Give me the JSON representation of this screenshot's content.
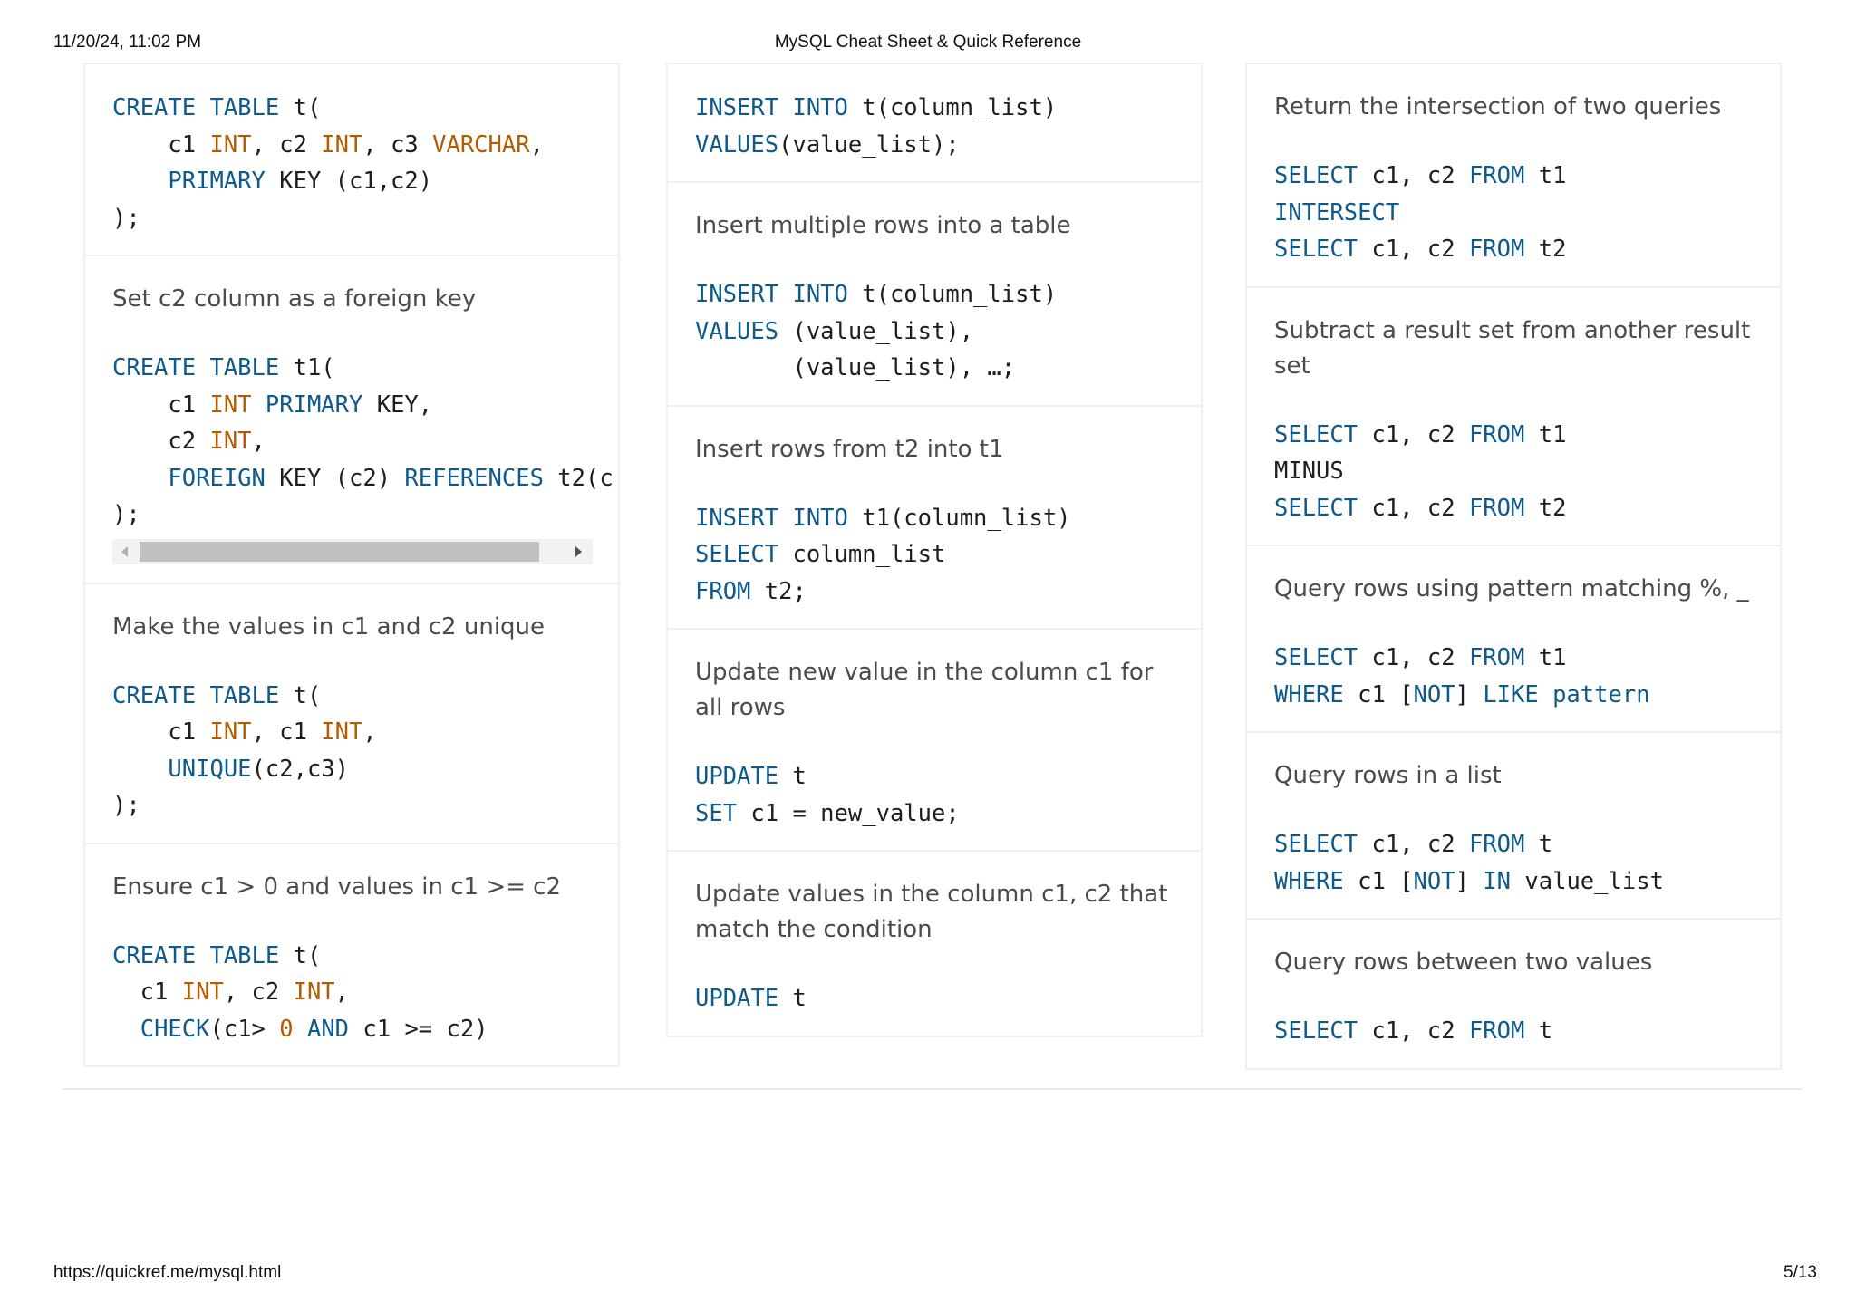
{
  "print_header": {
    "date": "11/20/24, 11:02 PM",
    "title": "MySQL Cheat Sheet & Quick Reference"
  },
  "print_footer": {
    "url": "https://quickref.me/mysql.html",
    "page": "5/13"
  },
  "cards": {
    "c0_1": {
      "code": [
        [
          [
            "kw",
            "CREATE TABLE"
          ],
          [
            "tx",
            " t("
          ]
        ],
        [
          [
            "tx",
            "    c1 "
          ],
          [
            "ty",
            "INT"
          ],
          [
            "tx",
            ", c2 "
          ],
          [
            "ty",
            "INT"
          ],
          [
            "tx",
            ", c3 "
          ],
          [
            "ty",
            "VARCHAR"
          ],
          [
            "tx",
            ","
          ]
        ],
        [
          [
            "tx",
            "    "
          ],
          [
            "kw",
            "PRIMARY"
          ],
          [
            "tx",
            " KEY (c1,c2)"
          ]
        ],
        [
          [
            "tx",
            ");"
          ]
        ]
      ]
    },
    "c0_2": {
      "desc": "Set c2 column as a foreign key",
      "code": [
        [
          [
            "kw",
            "CREATE TABLE"
          ],
          [
            "tx",
            " t1("
          ]
        ],
        [
          [
            "tx",
            "    c1 "
          ],
          [
            "ty",
            "INT"
          ],
          [
            "tx",
            " "
          ],
          [
            "kw",
            "PRIMARY"
          ],
          [
            "tx",
            " KEY,"
          ]
        ],
        [
          [
            "tx",
            "    c2 "
          ],
          [
            "ty",
            "INT"
          ],
          [
            "tx",
            ","
          ]
        ],
        [
          [
            "tx",
            "    "
          ],
          [
            "kw",
            "FOREIGN"
          ],
          [
            "tx",
            " KEY (c2) "
          ],
          [
            "kw",
            "REFERENCES"
          ],
          [
            "tx",
            " t2(c"
          ]
        ],
        [
          [
            "tx",
            ");"
          ]
        ]
      ]
    },
    "c0_3": {
      "desc": "Make the values in c1 and c2 unique",
      "code": [
        [
          [
            "kw",
            "CREATE TABLE"
          ],
          [
            "tx",
            " t("
          ]
        ],
        [
          [
            "tx",
            "    c1 "
          ],
          [
            "ty",
            "INT"
          ],
          [
            "tx",
            ", c1 "
          ],
          [
            "ty",
            "INT"
          ],
          [
            "tx",
            ","
          ]
        ],
        [
          [
            "tx",
            "    "
          ],
          [
            "kw",
            "UNIQUE"
          ],
          [
            "tx",
            "(c2,c3)"
          ]
        ],
        [
          [
            "tx",
            ");"
          ]
        ]
      ]
    },
    "c0_4": {
      "desc": "Ensure c1 > 0 and values in c1 >= c2",
      "code": [
        [
          [
            "kw",
            "CREATE TABLE"
          ],
          [
            "tx",
            " t("
          ]
        ],
        [
          [
            "tx",
            "  c1 "
          ],
          [
            "ty",
            "INT"
          ],
          [
            "tx",
            ", c2 "
          ],
          [
            "ty",
            "INT"
          ],
          [
            "tx",
            ","
          ]
        ],
        [
          [
            "tx",
            "  "
          ],
          [
            "kw",
            "CHECK"
          ],
          [
            "tx",
            "(c1> "
          ],
          [
            "nm",
            "0"
          ],
          [
            "tx",
            " "
          ],
          [
            "kw",
            "AND"
          ],
          [
            "tx",
            " c1 >= c2)"
          ]
        ]
      ]
    },
    "c1_1": {
      "code": [
        [
          [
            "kw",
            "INSERT INTO"
          ],
          [
            "tx",
            " t(column_list)"
          ]
        ],
        [
          [
            "kw",
            "VALUES"
          ],
          [
            "tx",
            "(value_list);"
          ]
        ]
      ]
    },
    "c1_2": {
      "desc": "Insert multiple rows into a table",
      "code": [
        [
          [
            "kw",
            "INSERT INTO"
          ],
          [
            "tx",
            " t(column_list)"
          ]
        ],
        [
          [
            "kw",
            "VALUES"
          ],
          [
            "tx",
            " (value_list),"
          ]
        ],
        [
          [
            "tx",
            "       (value_list), …;"
          ]
        ]
      ]
    },
    "c1_3": {
      "desc": "Insert rows from t2 into t1",
      "code": [
        [
          [
            "kw",
            "INSERT INTO"
          ],
          [
            "tx",
            " t1(column_list)"
          ]
        ],
        [
          [
            "kw",
            "SELECT"
          ],
          [
            "tx",
            " column_list"
          ]
        ],
        [
          [
            "kw",
            "FROM"
          ],
          [
            "tx",
            " t2;"
          ]
        ]
      ]
    },
    "c1_4": {
      "desc": "Update new value in the column c1 for all rows",
      "code": [
        [
          [
            "kw",
            "UPDATE"
          ],
          [
            "tx",
            " t"
          ]
        ],
        [
          [
            "kw",
            "SET"
          ],
          [
            "tx",
            " c1 = new_value;"
          ]
        ]
      ]
    },
    "c1_5": {
      "desc": "Update values in the column c1, c2 that match the condition",
      "code": [
        [
          [
            "kw",
            "UPDATE"
          ],
          [
            "tx",
            " t"
          ]
        ]
      ]
    },
    "c2_1": {
      "desc": "Return the intersection of two queries",
      "code": [
        [
          [
            "kw",
            "SELECT"
          ],
          [
            "tx",
            " c1, c2 "
          ],
          [
            "kw",
            "FROM"
          ],
          [
            "tx",
            " t1"
          ]
        ],
        [
          [
            "kw",
            "INTERSECT"
          ]
        ],
        [
          [
            "kw",
            "SELECT"
          ],
          [
            "tx",
            " c1, c2 "
          ],
          [
            "kw",
            "FROM"
          ],
          [
            "tx",
            " t2"
          ]
        ]
      ]
    },
    "c2_2": {
      "desc": "Subtract a result set from another result set",
      "code": [
        [
          [
            "kw",
            "SELECT"
          ],
          [
            "tx",
            " c1, c2 "
          ],
          [
            "kw",
            "FROM"
          ],
          [
            "tx",
            " t1"
          ]
        ],
        [
          [
            "tx",
            "MINUS"
          ]
        ],
        [
          [
            "kw",
            "SELECT"
          ],
          [
            "tx",
            " c1, c2 "
          ],
          [
            "kw",
            "FROM"
          ],
          [
            "tx",
            " t2"
          ]
        ]
      ]
    },
    "c2_3": {
      "desc": "Query rows using pattern matching %, _",
      "code": [
        [
          [
            "kw",
            "SELECT"
          ],
          [
            "tx",
            " c1, c2 "
          ],
          [
            "kw",
            "FROM"
          ],
          [
            "tx",
            " t1"
          ]
        ],
        [
          [
            "kw",
            "WHERE"
          ],
          [
            "tx",
            " c1 ["
          ],
          [
            "kw",
            "NOT"
          ],
          [
            "tx",
            "] "
          ],
          [
            "kw",
            "LIKE pattern"
          ]
        ]
      ]
    },
    "c2_4": {
      "desc": "Query rows in a list",
      "code": [
        [
          [
            "kw",
            "SELECT"
          ],
          [
            "tx",
            " c1, c2 "
          ],
          [
            "kw",
            "FROM"
          ],
          [
            "tx",
            " t"
          ]
        ],
        [
          [
            "kw",
            "WHERE"
          ],
          [
            "tx",
            " c1 ["
          ],
          [
            "kw",
            "NOT"
          ],
          [
            "tx",
            "] "
          ],
          [
            "kw",
            "IN"
          ],
          [
            "tx",
            " value_list"
          ]
        ]
      ]
    },
    "c2_5": {
      "desc": "Query rows between two values",
      "code": [
        [
          [
            "kw",
            "SELECT"
          ],
          [
            "tx",
            " c1, c2 "
          ],
          [
            "kw",
            "FROM"
          ],
          [
            "tx",
            " t"
          ]
        ]
      ]
    }
  }
}
